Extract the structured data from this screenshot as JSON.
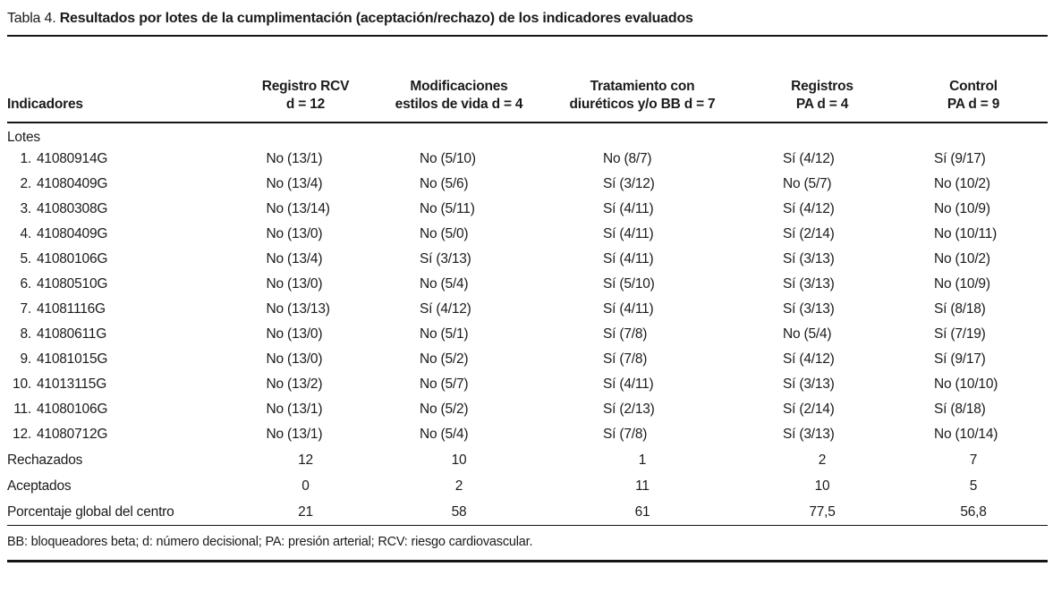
{
  "title": {
    "prefix": "Tabla 4.",
    "text": "Resultados por lotes de la cumplimentación (aceptación/rechazo) de los indicadores evaluados"
  },
  "table": {
    "first_column_header": "Indicadores",
    "columns": [
      {
        "line1": "Registro RCV",
        "line2": "d = 12"
      },
      {
        "line1": "Modificaciones",
        "line2": "estilos de vida d = 4"
      },
      {
        "line1": "Tratamiento con",
        "line2": "diuréticos y/o BB d = 7"
      },
      {
        "line1": "Registros",
        "line2": "PA d = 4"
      },
      {
        "line1": "Control",
        "line2": "PA d = 9"
      }
    ],
    "group_label": "Lotes",
    "lotes": [
      {
        "num": "1.",
        "id": "41080914G",
        "values": [
          "No (13/1)",
          "No (5/10)",
          "No (8/7)",
          "Sí (4/12)",
          "Sí (9/17)"
        ]
      },
      {
        "num": "2.",
        "id": "41080409G",
        "values": [
          "No (13/4)",
          "No (5/6)",
          "Sí (3/12)",
          "No (5/7)",
          "No (10/2)"
        ]
      },
      {
        "num": "3.",
        "id": "41080308G",
        "values": [
          "No (13/14)",
          "No (5/11)",
          "Sí (4/11)",
          "Sí (4/12)",
          "No (10/9)"
        ]
      },
      {
        "num": "4.",
        "id": "41080409G",
        "values": [
          "No (13/0)",
          "No (5/0)",
          "Sí (4/11)",
          "Sí (2/14)",
          "No (10/11)"
        ]
      },
      {
        "num": "5.",
        "id": "41080106G",
        "values": [
          "No (13/4)",
          "Sí (3/13)",
          "Sí (4/11)",
          "Sí (3/13)",
          "No (10/2)"
        ]
      },
      {
        "num": "6.",
        "id": "41080510G",
        "values": [
          "No (13/0)",
          "No (5/4)",
          "Sí (5/10)",
          "Sí (3/13)",
          "No (10/9)"
        ]
      },
      {
        "num": "7.",
        "id": "41081116G",
        "values": [
          "No (13/13)",
          "Sí (4/12)",
          "Sí (4/11)",
          "Sí (3/13)",
          "Sí (8/18)"
        ]
      },
      {
        "num": "8.",
        "id": "41080611G",
        "values": [
          "No (13/0)",
          "No (5/1)",
          "Sí (7/8)",
          "No (5/4)",
          "Sí (7/19)"
        ]
      },
      {
        "num": "9.",
        "id": "41081015G",
        "values": [
          "No (13/0)",
          "No (5/2)",
          "Sí (7/8)",
          "Sí (4/12)",
          "Sí (9/17)"
        ]
      },
      {
        "num": "10.",
        "id": "41013115G",
        "values": [
          "No (13/2)",
          "No (5/7)",
          "Sí (4/11)",
          "Sí (3/13)",
          "No (10/10)"
        ]
      },
      {
        "num": "11.",
        "id": "41080106G",
        "values": [
          "No (13/1)",
          "No (5/2)",
          "Sí (2/13)",
          "Sí (2/14)",
          "Sí (8/18)"
        ]
      },
      {
        "num": "12.",
        "id": "41080712G",
        "values": [
          "No (13/1)",
          "No (5/4)",
          "Sí (7/8)",
          "Sí (3/13)",
          "No (10/14)"
        ]
      }
    ],
    "summary": [
      {
        "label": "Rechazados",
        "values": [
          "12",
          "10",
          "1",
          "2",
          "7"
        ]
      },
      {
        "label": "Aceptados",
        "values": [
          "0",
          "2",
          "11",
          "10",
          "5"
        ]
      },
      {
        "label": "Porcentaje global del centro",
        "values": [
          "21",
          "58",
          "61",
          "77,5",
          "56,8"
        ]
      }
    ]
  },
  "footnote": "BB: bloqueadores beta; d: número decisional; PA: presión arterial; RCV: riesgo cardiovascular."
}
